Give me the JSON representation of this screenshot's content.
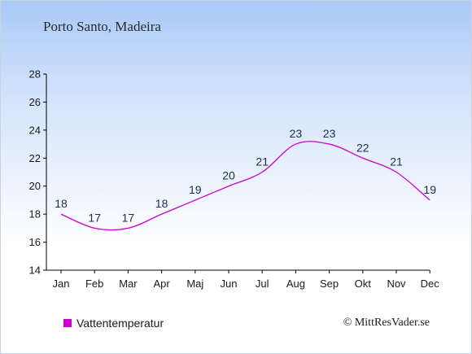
{
  "header": {
    "place": "Porto Santo, Madeira"
  },
  "chart_data": {
    "type": "line",
    "title": "",
    "xlabel": "",
    "ylabel": "",
    "categories": [
      "Jan",
      "Feb",
      "Mar",
      "Apr",
      "Maj",
      "Jun",
      "Jul",
      "Aug",
      "Sep",
      "Okt",
      "Nov",
      "Dec"
    ],
    "series": [
      {
        "name": "Vattentemperatur",
        "values": [
          18,
          17,
          17,
          18,
          19,
          20,
          21,
          23,
          23,
          22,
          21,
          19
        ],
        "color": "#cc00cc"
      }
    ],
    "ylim": [
      14,
      28
    ],
    "yticks": [
      14,
      16,
      18,
      20,
      22,
      24,
      26,
      28
    ],
    "grid": false,
    "legend": "bottom-left"
  },
  "legend": {
    "label": "Vattentemperatur",
    "color": "#cc00cc"
  },
  "footer": {
    "credit": "© MittResVader.se"
  }
}
